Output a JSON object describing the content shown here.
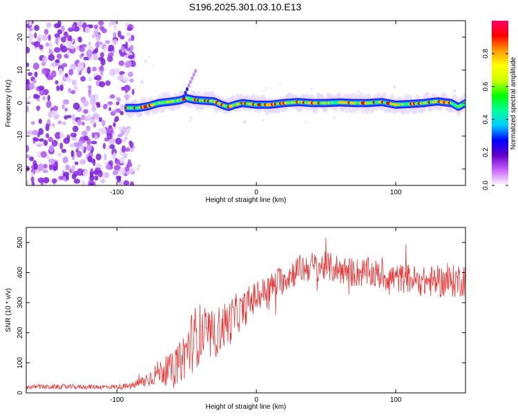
{
  "title": "S196.2025.301.03.10.E13",
  "chart_data": [
    {
      "type": "heatmap",
      "name": "spectrogram",
      "xlabel": "Height of straight line (km)",
      "ylabel": "Frequency (Hz)",
      "xlim": [
        -165,
        150
      ],
      "ylim": [
        -25,
        25
      ],
      "xticks": [
        -100,
        0,
        100
      ],
      "xtick_labels": [
        "-100",
        "0",
        "100"
      ],
      "yticks": [
        -20,
        -10,
        0,
        10,
        20
      ],
      "ytick_labels": [
        "-20",
        "-10",
        "0",
        "10",
        "20"
      ],
      "noise_region_x": [
        -165,
        -88
      ],
      "ridge": {
        "x": [
          -93,
          -85,
          -78,
          -70,
          -60,
          -55,
          -50,
          -45,
          -40,
          -30,
          -25,
          -20,
          -15,
          -10,
          0,
          10,
          20,
          30,
          40,
          50,
          60,
          70,
          80,
          90,
          100,
          110,
          120,
          130,
          140,
          145,
          150
        ],
        "freq": [
          -1.5,
          -1.5,
          -1.0,
          0.0,
          0.5,
          0.8,
          1.5,
          1.0,
          0.8,
          0.5,
          -0.5,
          -1.2,
          -0.5,
          0.0,
          -0.5,
          -0.5,
          0.0,
          0.3,
          0.0,
          0.0,
          0.2,
          0.0,
          0.0,
          0.3,
          -0.5,
          -0.3,
          0.0,
          0.5,
          0.0,
          -1.2,
          0.0
        ]
      },
      "colorbar": {
        "label": "Normalized spectral amplitude",
        "range": [
          0.0,
          1.0
        ],
        "ticks": [
          0.0,
          0.2,
          0.4,
          0.6,
          0.8
        ],
        "tick_labels": [
          "0.0",
          "0.2",
          "0.4",
          "0.6",
          "0.8"
        ],
        "colors": [
          "#ffffff",
          "#cc66ff",
          "#6600cc",
          "#0000ff",
          "#00ccff",
          "#00ff99",
          "#00ff00",
          "#ccff00",
          "#ffff00",
          "#ff9900",
          "#ff0000",
          "#ff0066"
        ]
      }
    },
    {
      "type": "line",
      "name": "snr",
      "xlabel": "Height of straight line (km)",
      "ylabel": "SNR (10 * v/v)",
      "xlim": [
        -165,
        150
      ],
      "ylim": [
        0,
        550
      ],
      "xticks": [
        -100,
        0,
        100
      ],
      "xtick_labels": [
        "-100",
        "0",
        "100"
      ],
      "yticks": [
        0,
        100,
        200,
        300,
        400,
        500
      ],
      "ytick_labels": [
        "0",
        "100",
        "200",
        "300",
        "400",
        "500"
      ],
      "color": "#ee3333",
      "envelope": {
        "x": [
          -165,
          -140,
          -120,
          -100,
          -90,
          -80,
          -70,
          -60,
          -55,
          -50,
          -45,
          -40,
          -35,
          -30,
          -25,
          -20,
          -15,
          -10,
          -5,
          0,
          10,
          20,
          30,
          40,
          50,
          60,
          70,
          80,
          90,
          100,
          110,
          120,
          130,
          140,
          150
        ],
        "mean": [
          20,
          20,
          20,
          20,
          22,
          40,
          70,
          80,
          100,
          140,
          180,
          200,
          190,
          190,
          220,
          230,
          260,
          270,
          300,
          320,
          350,
          380,
          410,
          420,
          420,
          410,
          400,
          400,
          390,
          380,
          380,
          370,
          370,
          370,
          380
        ],
        "spread": [
          8,
          8,
          8,
          8,
          10,
          25,
          40,
          55,
          70,
          90,
          110,
          100,
          90,
          80,
          80,
          80,
          70,
          60,
          60,
          50,
          50,
          50,
          50,
          50,
          50,
          50,
          50,
          50,
          50,
          50,
          50,
          50,
          55,
          55,
          60
        ]
      }
    }
  ]
}
